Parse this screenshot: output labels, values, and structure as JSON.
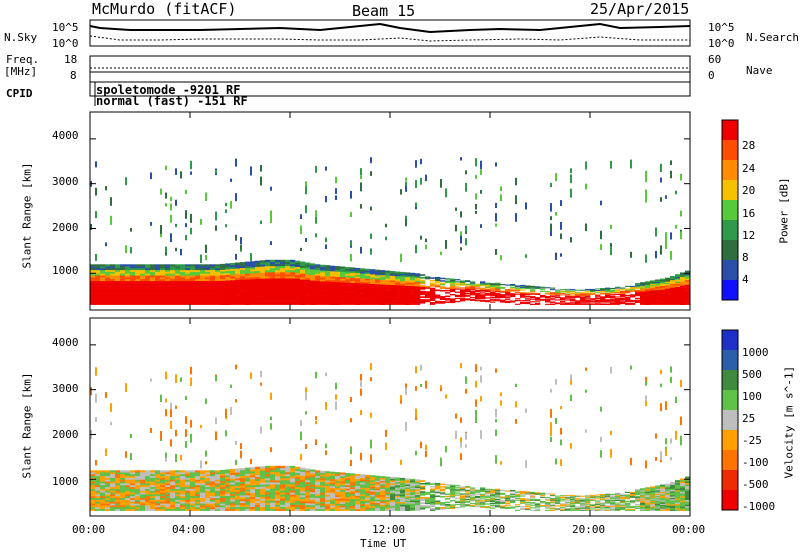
{
  "header": {
    "station": "McMurdo (fitACF)",
    "beam": "Beam 15",
    "date": "25/Apr/2015"
  },
  "noise_panel": {
    "left_label": "N.Sky",
    "right_label": "N.Search",
    "ticks_left": [
      "10^5",
      "10^0"
    ],
    "ticks_right": [
      "10^5",
      "10^0"
    ]
  },
  "freq_panel": {
    "left_label_line1": "Freq.",
    "left_label_line2": "[MHz]",
    "left_ticks": [
      "18",
      "8"
    ],
    "right_ticks": [
      "60",
      "0"
    ],
    "right_label": "Nave"
  },
  "cpid": {
    "label": "CPID",
    "modes": [
      "spoletomode -9201 RF",
      "normal (fast) -151 RF"
    ]
  },
  "time_axis": {
    "xlabel": "Time UT",
    "ticks": [
      "00:00",
      "04:00",
      "08:00",
      "12:00",
      "16:00",
      "20:00",
      "00:00"
    ]
  },
  "colors": {
    "power": [
      "#1010ff",
      "#2a4fa8",
      "#2f6e3f",
      "#2e9a4a",
      "#57c93b",
      "#f5c000",
      "#ff8c00",
      "#ff4d00",
      "#ee0000"
    ],
    "velocity": [
      "#1e30c8",
      "#2a5fa8",
      "#3f8a3f",
      "#5fc04a",
      "#bebebe",
      "#ffa000",
      "#ff7400",
      "#ee2a00",
      "#ee0000"
    ]
  },
  "chart_data": [
    {
      "type": "heatmap",
      "title": "",
      "xlabel": "",
      "ylabel": "Slant Range [km]",
      "xlim": [
        0,
        24
      ],
      "ylim": [
        180,
        4600
      ],
      "yticks": [
        "1000",
        "2000",
        "3000",
        "4000"
      ],
      "colorbar": {
        "label": "Power [dB]",
        "ticks": [
          "4",
          "8",
          "12",
          "16",
          "20",
          "24",
          "28"
        ]
      },
      "series": [
        {
          "x": [
            0,
            1,
            2,
            3,
            4,
            5,
            6,
            7,
            8,
            9,
            10,
            11,
            12,
            13,
            14,
            15,
            16,
            17,
            18,
            19,
            20,
            21,
            22,
            23,
            24
          ],
          "y_low": [
            300,
            300,
            300,
            300,
            300,
            300,
            300,
            300,
            300,
            300,
            300,
            300,
            300,
            300,
            300,
            400,
            350,
            300,
            300,
            300,
            300,
            300,
            300,
            300,
            300
          ],
          "y_high": [
            1200,
            1200,
            1200,
            1200,
            1200,
            1200,
            1250,
            1300,
            1300,
            1200,
            1150,
            1100,
            1050,
            1000,
            900,
            850,
            800,
            750,
            700,
            650,
            650,
            700,
            800,
            900,
            1100
          ]
        }
      ]
    },
    {
      "type": "heatmap",
      "title": "",
      "xlabel": "Time UT",
      "ylabel": "Slant Range [km]",
      "xlim": [
        0,
        24
      ],
      "ylim": [
        180,
        4600
      ],
      "yticks": [
        "1000",
        "2000",
        "3000",
        "4000"
      ],
      "colorbar": {
        "label": "Velocity [m s^-1]",
        "ticks": [
          "1000",
          "500",
          "100",
          "25",
          "-25",
          "-100",
          "-500",
          "-1000"
        ]
      }
    }
  ]
}
